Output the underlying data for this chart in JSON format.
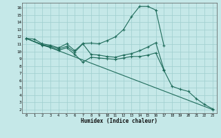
{
  "bg_color": "#c5e8e8",
  "grid_color": "#9ecece",
  "line_color": "#1e6b5a",
  "xlim": [
    -0.5,
    23.5
  ],
  "ylim": [
    1.5,
    16.7
  ],
  "xticks": [
    0,
    1,
    2,
    3,
    4,
    5,
    6,
    7,
    8,
    9,
    10,
    11,
    12,
    13,
    14,
    15,
    16,
    17,
    18,
    19,
    20,
    21,
    22,
    23
  ],
  "yticks": [
    2,
    3,
    4,
    5,
    6,
    7,
    8,
    9,
    10,
    11,
    12,
    13,
    14,
    15,
    16
  ],
  "xlabel": "Humidex (Indice chaleur)",
  "lines": [
    {
      "x": [
        0,
        1,
        2,
        3,
        4,
        5,
        6,
        7,
        8,
        9,
        10,
        11,
        12,
        13,
        14,
        15,
        16,
        17,
        18,
        19,
        20,
        21,
        22,
        23
      ],
      "y": [
        11.8,
        11.7,
        11.05,
        10.85,
        10.5,
        11.05,
        10.1,
        11.1,
        11.15,
        11.05,
        11.5,
        12.0,
        13.0,
        14.8,
        16.2,
        16.2,
        15.7,
        10.8,
        null,
        null,
        null,
        null,
        null,
        null
      ]
    },
    {
      "x": [
        0,
        2,
        3,
        4,
        5,
        6,
        7,
        8,
        9,
        10,
        11,
        12,
        13,
        14,
        15,
        16,
        17,
        18,
        19,
        20,
        21,
        22,
        23
      ],
      "y": [
        11.8,
        10.9,
        10.7,
        10.35,
        10.7,
        9.9,
        11.05,
        9.6,
        9.5,
        9.3,
        9.2,
        9.5,
        9.7,
        10.1,
        10.6,
        11.2,
        7.5,
        null,
        null,
        null,
        null,
        null,
        null
      ]
    },
    {
      "x": [
        0,
        23
      ],
      "y": [
        11.8,
        2.0
      ]
    },
    {
      "x": [
        0,
        2,
        3,
        4,
        5,
        6,
        7,
        8,
        9,
        10,
        11,
        12,
        13,
        14,
        15,
        16,
        17,
        18,
        19,
        20,
        21,
        22,
        23
      ],
      "y": [
        11.8,
        10.85,
        10.55,
        10.15,
        10.5,
        9.6,
        8.5,
        9.2,
        9.1,
        9.0,
        8.9,
        9.1,
        9.3,
        9.3,
        9.5,
        9.8,
        7.4,
        5.2,
        4.8,
        4.5,
        3.5,
        2.7,
        2.1
      ]
    }
  ]
}
